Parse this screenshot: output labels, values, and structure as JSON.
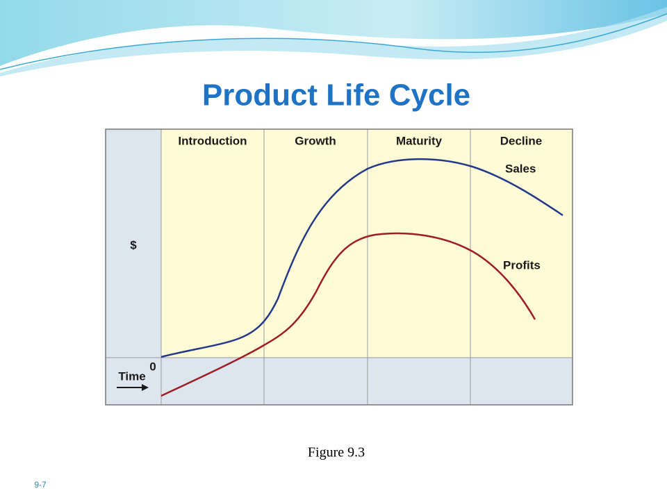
{
  "title": "Product Life Cycle",
  "stages": [
    "Introduction",
    "Growth",
    "Maturity",
    "Decline"
  ],
  "curves": {
    "sales": "Sales",
    "profits": "Profits"
  },
  "axis": {
    "y": "$",
    "x": "Time",
    "origin": "0"
  },
  "caption": "Figure 9.3",
  "slide_number": "9-7"
}
